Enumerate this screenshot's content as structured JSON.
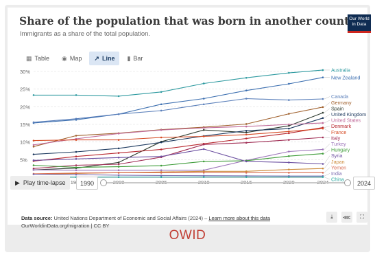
{
  "header": {
    "title": "Share of the population that was born in another country",
    "subtitle": "Immigrants as a share of the total population.",
    "logo_line1": "Our World",
    "logo_line2": "in Data"
  },
  "tabs": [
    {
      "label": "Table",
      "icon": "table-icon"
    },
    {
      "label": "Map",
      "icon": "globe-icon"
    },
    {
      "label": "Line",
      "icon": "line-chart-icon",
      "active": true
    },
    {
      "label": "Bar",
      "icon": "bar-chart-icon"
    }
  ],
  "controls": {
    "play_label": "Play time-lapse",
    "start_year": "1990",
    "end_year": "2024"
  },
  "footer": {
    "source_label": "Data source:",
    "source_text": "United Nations Department of Economic and Social Affairs (2024) –",
    "learn_more": "Learn more about this data",
    "url_line": "OurWorldinData.org/migration | CC BY"
  },
  "brand": "OWID",
  "chart_data": {
    "type": "line",
    "x": [
      1990,
      1995,
      2000,
      2005,
      2010,
      2015,
      2020,
      2024
    ],
    "x_ticks": [
      "1990",
      "1995",
      "2000",
      "2005",
      "2010",
      "2015",
      "2020",
      "2024"
    ],
    "y_ticks": [
      "0%",
      "5%",
      "10%",
      "15%",
      "20%",
      "25%",
      "30%"
    ],
    "ylim": [
      0,
      30
    ],
    "grid": true,
    "series": [
      {
        "name": "Australia",
        "color": "#2e9aa0",
        "values": [
          23.3,
          23.3,
          23.0,
          24.2,
          26.6,
          28.2,
          29.6,
          30.4
        ]
      },
      {
        "name": "New Zealand",
        "color": "#3c6fb0",
        "values": [
          15.4,
          16.3,
          17.9,
          20.7,
          22.3,
          24.6,
          26.5,
          28.3
        ]
      },
      {
        "name": "Canada",
        "color": "#5a7fba",
        "values": [
          15.6,
          16.6,
          17.9,
          18.9,
          20.7,
          22.3,
          21.9,
          22.2
        ]
      },
      {
        "name": "Germany",
        "color": "#a0612e",
        "values": [
          8.7,
          11.8,
          12.5,
          13.5,
          14.2,
          15.1,
          18.0,
          19.9
        ]
      },
      {
        "name": "Spain",
        "color": "#2d3a2e",
        "values": [
          2.1,
          2.6,
          4.2,
          10.1,
          13.4,
          12.7,
          14.6,
          18.3
        ]
      },
      {
        "name": "United Kingdom",
        "color": "#1e3a5f",
        "values": [
          6.5,
          7.2,
          8.2,
          9.9,
          11.7,
          13.2,
          13.8,
          16.8
        ]
      },
      {
        "name": "United States",
        "color": "#c06b9a",
        "values": [
          9.2,
          10.9,
          12.4,
          13.4,
          14.0,
          14.4,
          15.0,
          15.4
        ]
      },
      {
        "name": "Denmark",
        "color": "#b8282f",
        "values": [
          4.6,
          5.9,
          6.9,
          7.9,
          9.5,
          11.0,
          12.5,
          14.1
        ]
      },
      {
        "name": "France",
        "color": "#d54b24",
        "values": [
          10.4,
          10.6,
          10.6,
          11.3,
          11.6,
          12.1,
          13.0,
          13.8
        ]
      },
      {
        "name": "Italy",
        "color": "#a02d54",
        "values": [
          2.5,
          3.4,
          3.7,
          5.7,
          9.3,
          9.8,
          10.6,
          11.3
        ]
      },
      {
        "name": "Turkey",
        "color": "#9b73b9",
        "values": [
          2.1,
          2.0,
          2.0,
          2.0,
          2.0,
          4.8,
          7.3,
          7.9
        ]
      },
      {
        "name": "Hungary",
        "color": "#3f9c3a",
        "values": [
          3.4,
          2.8,
          3.0,
          3.3,
          4.5,
          4.7,
          6.0,
          6.7
        ]
      },
      {
        "name": "Syria",
        "color": "#6b4fa0",
        "values": [
          4.8,
          5.2,
          5.6,
          5.9,
          8.0,
          4.5,
          4.2,
          3.8
        ]
      },
      {
        "name": "Japan",
        "color": "#cc8a3a",
        "values": [
          0.9,
          1.1,
          1.3,
          1.5,
          1.7,
          1.7,
          2.2,
          2.5
        ]
      },
      {
        "name": "Yemen",
        "color": "#d76b4f",
        "values": [
          1.0,
          1.2,
          1.3,
          1.3,
          1.3,
          1.3,
          1.3,
          1.3
        ]
      },
      {
        "name": "India",
        "color": "#7b6bb0",
        "values": [
          0.85,
          0.75,
          0.6,
          0.5,
          0.45,
          0.4,
          0.35,
          0.35
        ]
      },
      {
        "name": "China",
        "color": "#2aa8a0",
        "values": [
          0.05,
          0.05,
          0.05,
          0.06,
          0.07,
          0.07,
          0.07,
          0.08
        ]
      }
    ]
  }
}
